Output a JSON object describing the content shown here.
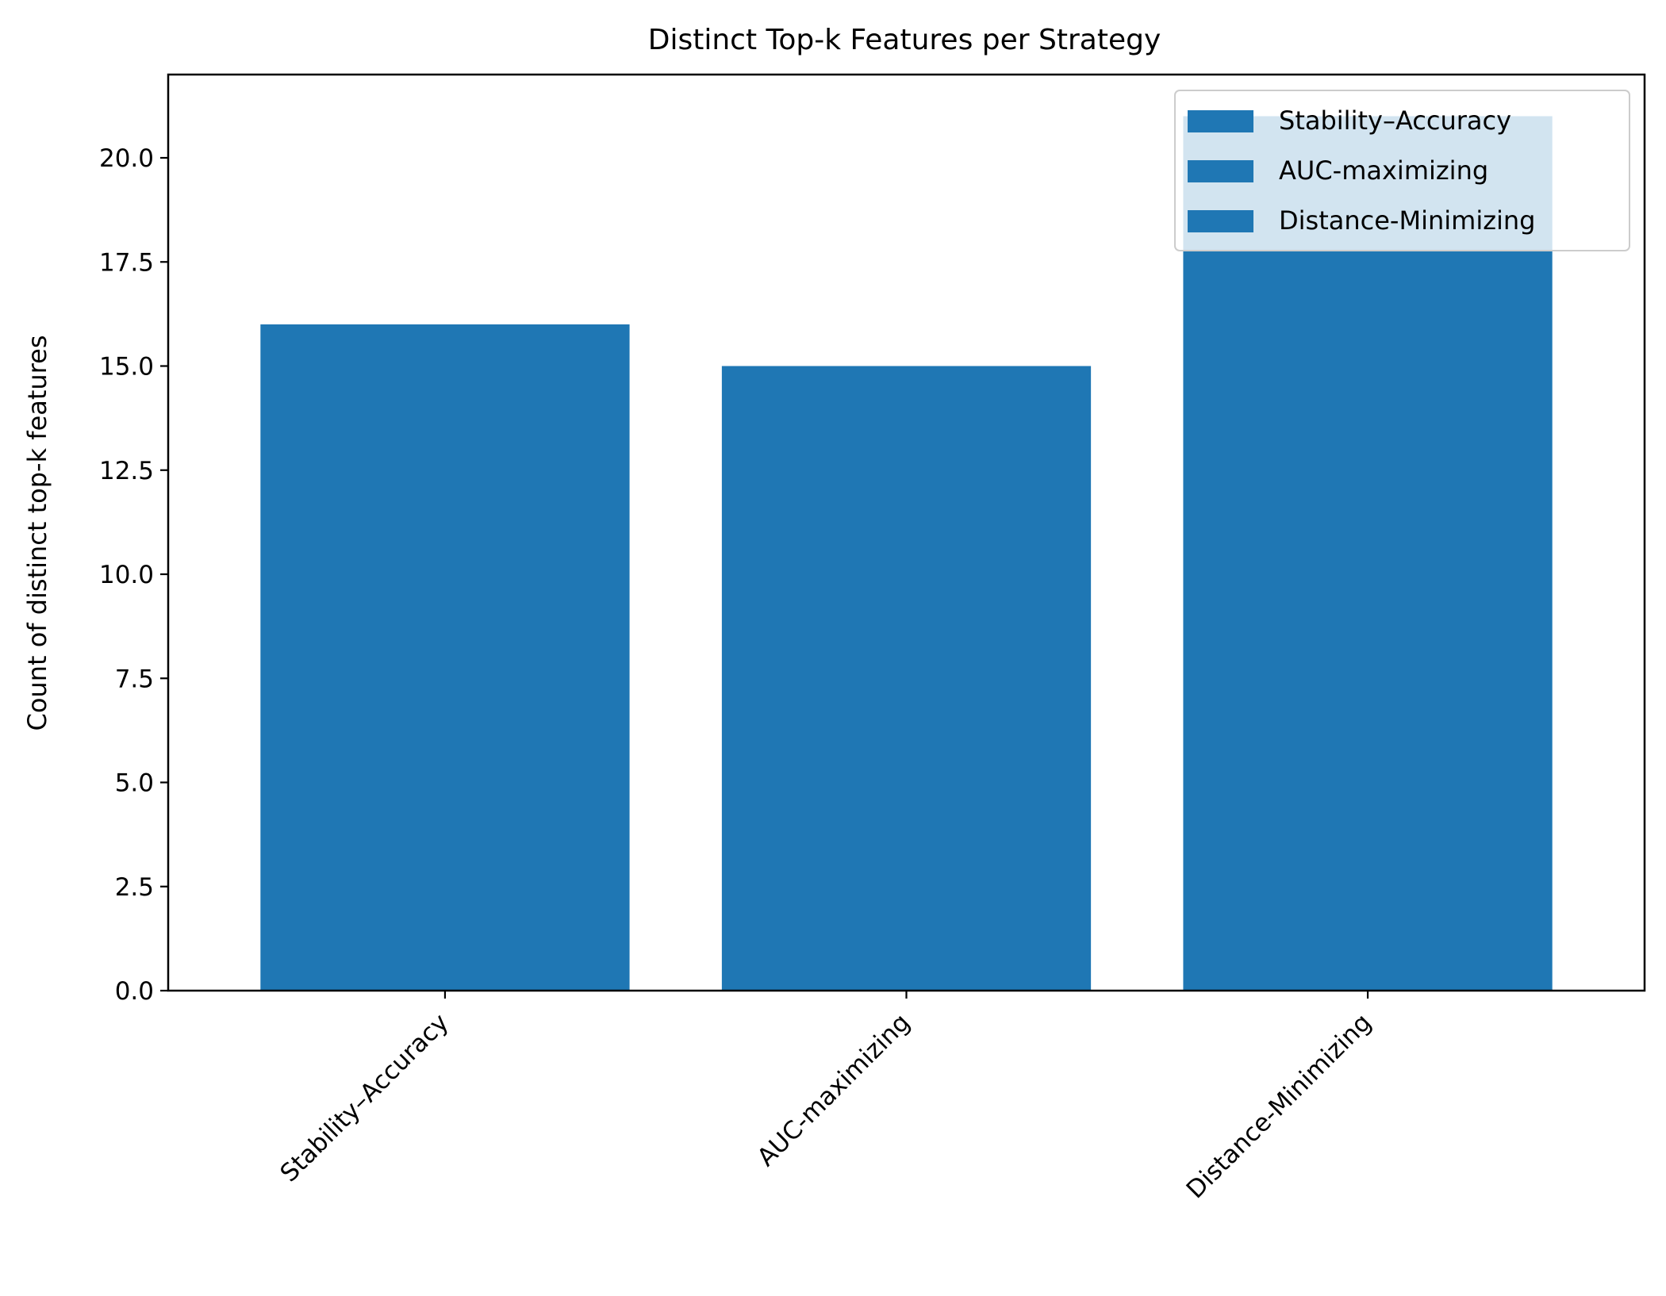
{
  "chart_data": {
    "type": "bar",
    "title": "Distinct Top-k Features per Strategy",
    "xlabel": "",
    "ylabel": "Count of distinct top-k features",
    "categories": [
      "Stability–Accuracy",
      "AUC-maximizing",
      "Distance-Minimizing"
    ],
    "values": [
      16,
      15,
      21
    ],
    "ylim": [
      0,
      22
    ],
    "yticks": [
      0.0,
      2.5,
      5.0,
      7.5,
      10.0,
      12.5,
      15.0,
      17.5,
      20.0
    ],
    "ytick_labels": [
      "0.0",
      "2.5",
      "5.0",
      "7.5",
      "10.0",
      "12.5",
      "15.0",
      "17.5",
      "20.0"
    ],
    "xtick_rotation": 45,
    "grid": false,
    "legend": {
      "placement": "top-right",
      "entries": [
        "Stability–Accuracy",
        "AUC-maximizing",
        "Distance-Minimizing"
      ]
    },
    "colors": {
      "bar": "#1f77b4",
      "axis": "#000000",
      "background": "#ffffff",
      "legend_frame": "#cccccc"
    }
  }
}
